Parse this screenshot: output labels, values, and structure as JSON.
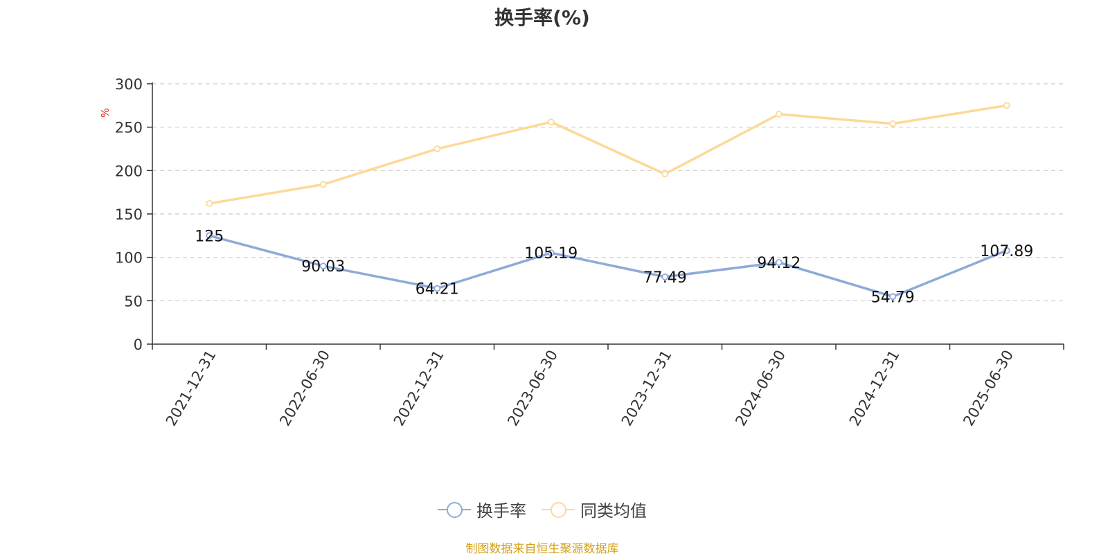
{
  "chart_data": {
    "type": "line",
    "title": "换手率(%)",
    "ylabel": "%",
    "categories": [
      "2021-12-31",
      "2022-06-30",
      "2022-12-31",
      "2023-06-30",
      "2023-12-31",
      "2024-06-30",
      "2024-12-31",
      "2025-06-30"
    ],
    "yticks": [
      0,
      50,
      100,
      150,
      200,
      250,
      300
    ],
    "ylim": [
      0,
      300
    ],
    "grid": true,
    "legend_position": "bottom",
    "series": [
      {
        "name": "换手率",
        "color": "#8eaad8",
        "values": [
          125,
          90.03,
          64.21,
          105.19,
          77.49,
          94.12,
          54.79,
          107.89
        ],
        "labels": [
          "125",
          "90.03",
          "64.21",
          "105.19",
          "77.49",
          "94.12",
          "54.79",
          "107.89"
        ]
      },
      {
        "name": "同类均值",
        "color": "#fcd996",
        "values": [
          162,
          184,
          225,
          256,
          196,
          265,
          254,
          275
        ]
      }
    ]
  },
  "source_note": "制图数据来自恒生聚源数据库"
}
